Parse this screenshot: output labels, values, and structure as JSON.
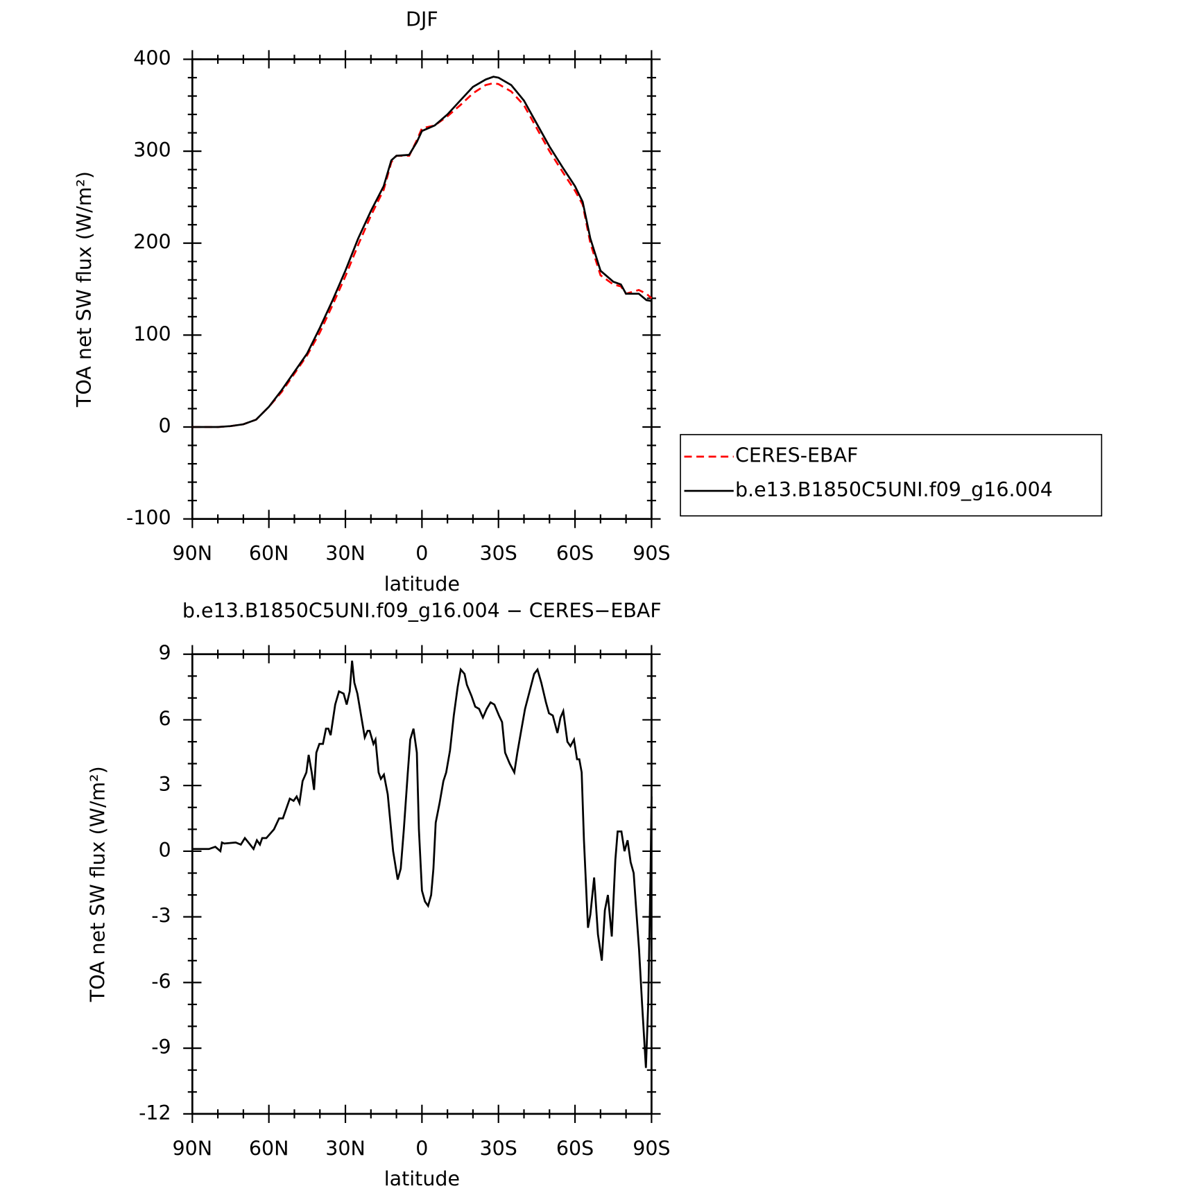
{
  "chart_data": [
    {
      "type": "line",
      "title": "DJF",
      "xlabel": "latitude",
      "ylabel": "TOA net SW flux (W/m²)",
      "xlim": [
        90,
        -90
      ],
      "ylim": [
        -100,
        400
      ],
      "xticks": [
        {
          "value": 90,
          "label": "90N"
        },
        {
          "value": 60,
          "label": "60N"
        },
        {
          "value": 30,
          "label": "30N"
        },
        0,
        {
          "value": -30,
          "label": "30S"
        },
        {
          "value": -60,
          "label": "60S"
        },
        {
          "value": -90,
          "label": "90S"
        }
      ],
      "yticks": [
        -100,
        0,
        100,
        200,
        300,
        400
      ],
      "x": [
        90,
        85,
        80,
        75,
        70,
        65,
        60,
        55,
        50,
        45,
        40,
        35,
        30,
        25,
        20,
        15,
        12,
        10,
        5,
        2,
        0,
        -5,
        -10,
        -15,
        -20,
        -25,
        -28,
        -30,
        -35,
        -40,
        -45,
        -50,
        -55,
        -60,
        -63,
        -66,
        -70,
        -75,
        -78,
        -80,
        -85,
        -88,
        -90
      ],
      "series": [
        {
          "name": "CERES-EBAF",
          "color": "#ff0000",
          "dash": true,
          "values": [
            0,
            0,
            0,
            1,
            3,
            8,
            22,
            38,
            58,
            78,
            103,
            133,
            164,
            198,
            230,
            258,
            288,
            295,
            295,
            312,
            325,
            328,
            338,
            350,
            363,
            372,
            374,
            373,
            365,
            350,
            325,
            300,
            278,
            257,
            242,
            200,
            165,
            155,
            153,
            145,
            149,
            145,
            140
          ]
        },
        {
          "name": "b.e13.B1850C5UNI.f09_g16.004",
          "color": "#000000",
          "dash": false,
          "values": [
            0,
            0,
            0,
            1,
            3,
            8,
            22,
            40,
            60,
            80,
            108,
            138,
            170,
            205,
            235,
            262,
            290,
            295,
            296,
            310,
            322,
            328,
            340,
            355,
            370,
            378,
            381,
            380,
            372,
            355,
            330,
            305,
            283,
            262,
            245,
            205,
            170,
            158,
            155,
            145,
            145,
            138,
            137
          ]
        }
      ],
      "legend": "right"
    },
    {
      "type": "line",
      "title": "b.e13.B1850C5UNI.f09_g16.004 − CERES−EBAF",
      "xlabel": "latitude",
      "ylabel": "TOA net SW flux (W/m²)",
      "xlim": [
        90,
        -90
      ],
      "ylim": [
        -12,
        9
      ],
      "xticks": [
        {
          "value": 90,
          "label": "90N"
        },
        {
          "value": 60,
          "label": "60N"
        },
        {
          "value": 30,
          "label": "30N"
        },
        0,
        {
          "value": -30,
          "label": "30S"
        },
        {
          "value": -60,
          "label": "60S"
        },
        {
          "value": -90,
          "label": "90S"
        }
      ],
      "yticks": [
        -12,
        -9,
        -6,
        -3,
        0,
        3,
        6,
        9
      ],
      "x": [
        90,
        83.5,
        81,
        79,
        78.4,
        77.5,
        73,
        71,
        69.4,
        68,
        66,
        64.7,
        63.5,
        62.6,
        61,
        58,
        56,
        54.5,
        51.8,
        50.3,
        49.1,
        48,
        46.8,
        45.3,
        44.4,
        43.2,
        42.3,
        41.4,
        40.2,
        38.8,
        37.6,
        36.7,
        35.8,
        34,
        32.5,
        30.7,
        29.5,
        28.3,
        27.4,
        26.5,
        25.3,
        22.4,
        21.3,
        20.5,
        19,
        18.2,
        17,
        16.1,
        14.9,
        13.4,
        11.3,
        9.5,
        8.3,
        7.1,
        5.6,
        4.6,
        3.3,
        2,
        1.2,
        0,
        -1.2,
        -2.4,
        -3.6,
        -4.5,
        -5.4,
        -6.9,
        -8.4,
        -9.5,
        -11,
        -12.5,
        -14,
        -15.2,
        -16.7,
        -17.6,
        -19.4,
        -20.9,
        -22.4,
        -23.9,
        -25.4,
        -26.9,
        -28.4,
        -30.2,
        -31.4,
        -32.6,
        -34.4,
        -36.2,
        -37.4,
        -38.9,
        -40.4,
        -42.2,
        -44,
        -45.3,
        -46.8,
        -48.6,
        -49.8,
        -51.3,
        -53.1,
        -54.3,
        -55.4,
        -57,
        -58.2,
        -59.6,
        -60.8,
        -61.7,
        -62.6,
        -63.5,
        -65.1,
        -66,
        -67.5,
        -69,
        -70.5,
        -71.7,
        -72.9,
        -74.4,
        -75.8,
        -76.7,
        -78.2,
        -79.4,
        -80.6,
        -81.8,
        -83,
        -83.9,
        -85.1,
        -86.3,
        -87.8,
        -88.7,
        -89.6,
        -90
      ],
      "series": [
        {
          "name": "b.e13.B1850C5UNI.f09_g16.004 − CERES−EBAF",
          "color": "#000000",
          "dash": false,
          "values": [
            0.1,
            0.1,
            0.2,
            0,
            0.4,
            0.35,
            0.4,
            0.3,
            0.6,
            0.4,
            0.1,
            0.5,
            0.3,
            0.6,
            0.6,
            1,
            1.5,
            1.5,
            2.4,
            2.3,
            2.5,
            2.2,
            3.2,
            3.6,
            4.4,
            3.6,
            2.8,
            4.5,
            4.9,
            4.9,
            5.6,
            5.6,
            5.3,
            6.7,
            7.3,
            7.2,
            6.7,
            7.3,
            8.7,
            7.7,
            7.2,
            5.2,
            5.5,
            5.5,
            4.9,
            5.1,
            3.6,
            3.3,
            3.5,
            2.6,
            0,
            -1.3,
            -0.8,
            1,
            3.5,
            5.1,
            5.6,
            4.5,
            1,
            -1.8,
            -2.3,
            -2.5,
            -2,
            -0.8,
            1.3,
            2.2,
            3.2,
            3.6,
            4.6,
            6.2,
            7.5,
            8.3,
            8.1,
            7.6,
            7.1,
            6.6,
            6.5,
            6.1,
            6.5,
            6.8,
            6.7,
            6.2,
            5.9,
            4.5,
            4,
            3.6,
            4.5,
            5.5,
            6.5,
            7.3,
            8.1,
            8.3,
            7.7,
            6.8,
            6.3,
            6.2,
            5.4,
            6.1,
            6.4,
            5,
            4.8,
            5.1,
            4.2,
            4.2,
            3.6,
            0.5,
            -3.5,
            -2.9,
            -1.2,
            -3.8,
            -5,
            -2.7,
            -2,
            -3.9,
            -0.4,
            0.9,
            0.9,
            0,
            0.5,
            -0.5,
            -1,
            -2.5,
            -4.5,
            -7,
            -9.9,
            -7,
            -1,
            2.5
          ]
        }
      ]
    }
  ]
}
